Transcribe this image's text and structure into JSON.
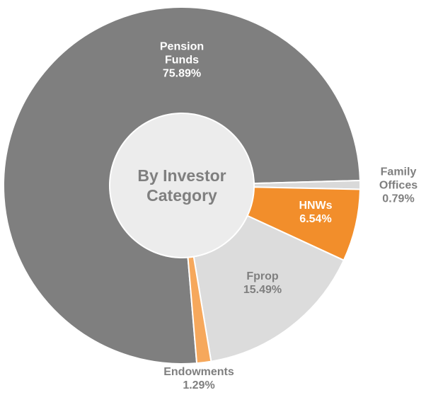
{
  "chart_data": {
    "type": "donut",
    "center_text": "By Investor Category",
    "categories": [
      "Pension Funds",
      "Family Offices",
      "HNWs",
      "Fprop",
      "Endowments"
    ],
    "values": [
      75.89,
      0.79,
      6.54,
      15.49,
      1.29
    ],
    "value_labels": [
      "75.89%",
      "0.79%",
      "6.54%",
      "15.49%",
      "1.29%"
    ],
    "colors": [
      "#7f7f7f",
      "#d9d9d9",
      "#f28e2b",
      "#dcdcdc",
      "#f6a85c"
    ]
  }
}
